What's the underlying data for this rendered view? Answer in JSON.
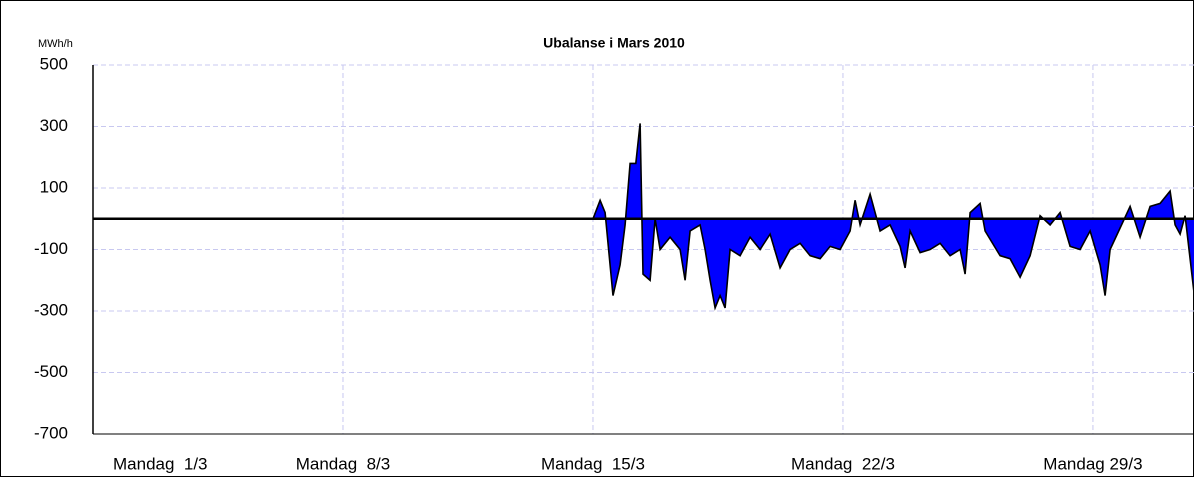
{
  "chart_data": {
    "type": "area",
    "title": "Ubalanse i Mars 2010",
    "y_label": "MWh/h",
    "color": "#0000ff",
    "line_color": "#000000",
    "grid": true,
    "x": [
      15.0,
      15.2,
      15.34,
      15.56,
      15.76,
      15.9,
      16.04,
      16.2,
      16.32,
      16.4,
      16.6,
      16.74,
      16.88,
      17.16,
      17.44,
      17.58,
      17.72,
      18.0,
      18.14,
      18.28,
      18.42,
      18.56,
      18.7,
      18.84,
      19.12,
      19.4,
      19.68,
      19.96,
      20.24,
      20.52,
      20.8,
      21.08,
      21.36,
      21.64,
      21.92,
      22.2,
      22.34,
      22.48,
      22.76,
      23.04,
      23.32,
      23.6,
      23.74,
      23.88,
      24.16,
      24.44,
      24.72,
      25.0,
      25.28,
      25.42,
      25.56,
      25.84,
      25.98,
      26.4,
      26.68,
      26.96,
      27.24,
      27.52,
      27.8,
      28.08,
      28.36,
      28.64,
      28.92,
      29.2,
      29.34,
      29.48,
      29.76,
      30.04,
      30.32,
      30.6,
      30.88,
      31.16,
      31.3,
      31.44,
      31.58,
      31.83
    ],
    "values": [
      0,
      60,
      20,
      -250,
      -150,
      -20,
      180,
      180,
      310,
      -180,
      -200,
      0,
      -100,
      -60,
      -100,
      -200,
      -40,
      -20,
      -100,
      -200,
      -290,
      -250,
      -290,
      -100,
      -120,
      -60,
      -100,
      -50,
      -160,
      -100,
      -80,
      -120,
      -130,
      -90,
      -100,
      -40,
      60,
      -20,
      80,
      -40,
      -20,
      -90,
      -160,
      -40,
      -110,
      -100,
      -80,
      -120,
      -100,
      -180,
      20,
      50,
      -40,
      -120,
      -130,
      -190,
      -120,
      10,
      -20,
      20,
      -90,
      -100,
      -40,
      -150,
      -250,
      -100,
      -30,
      40,
      -60,
      40,
      50,
      90,
      -20,
      -50,
      10,
      -240
    ],
    "xlim": [
      1,
      31.83
    ],
    "xticks": [
      {
        "value": 1,
        "label": "Mandag  1/3"
      },
      {
        "value": 8,
        "label": "Mandag  8/3"
      },
      {
        "value": 15,
        "label": "Mandag  15/3"
      },
      {
        "value": 22,
        "label": "Mandag  22/3"
      },
      {
        "value": 29,
        "label": "Mandag 29/3"
      }
    ],
    "ylim": [
      -700,
      500
    ],
    "yticks": [
      500,
      300,
      100,
      -100,
      -300,
      -500,
      -700
    ]
  }
}
